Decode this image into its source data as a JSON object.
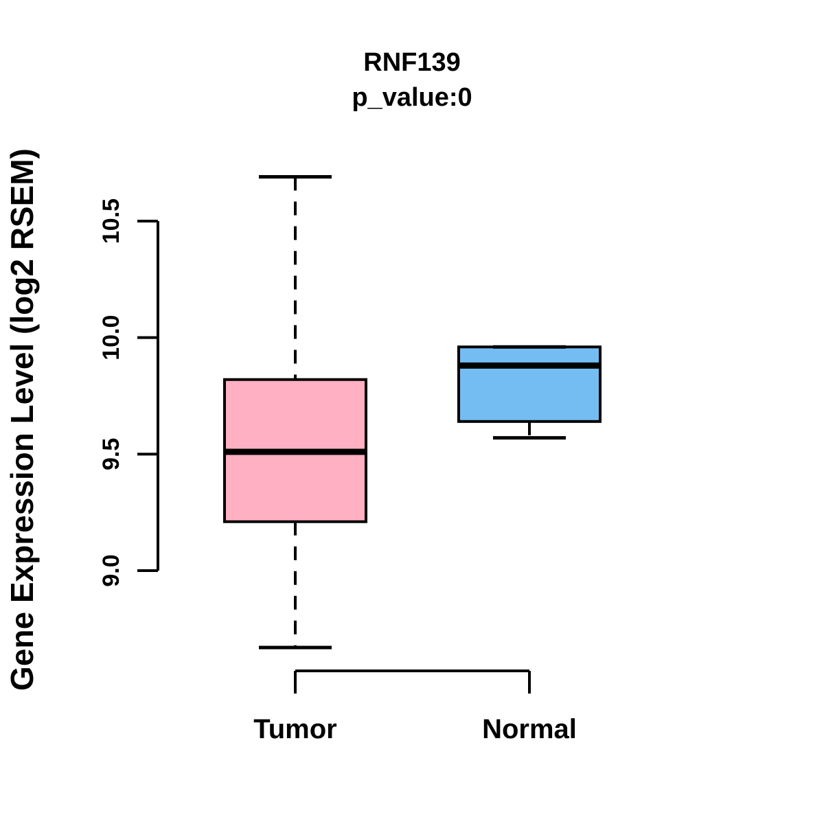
{
  "chart_data": {
    "type": "boxplot",
    "title": "RNF139",
    "subtitle": "p_value:0",
    "ylabel": "Gene Expression Level (log2 RSEM)",
    "xlabel": "",
    "categories": [
      "Tumor",
      "Normal"
    ],
    "yticks": [
      9.0,
      9.5,
      10.0,
      10.5
    ],
    "ylim": [
      8.55,
      10.8
    ],
    "grid": false,
    "legend": "none",
    "series": [
      {
        "name": "Tumor",
        "color": "#FFB1C3",
        "whisker_low": 8.67,
        "q1": 9.21,
        "median": 9.51,
        "q3": 9.82,
        "whisker_high": 10.69
      },
      {
        "name": "Normal",
        "color": "#74BDF2",
        "whisker_low": 9.57,
        "q1": 9.64,
        "median": 9.88,
        "q3": 9.96,
        "whisker_high": 9.96
      }
    ],
    "colors": {
      "stroke": "#000000",
      "background": "#ffffff"
    }
  }
}
